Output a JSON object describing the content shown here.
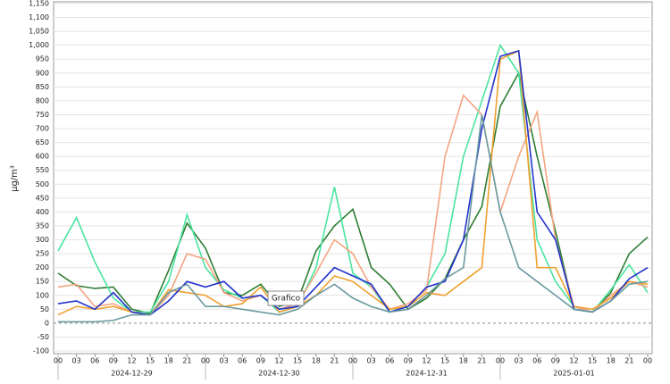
{
  "chart_data": {
    "type": "line",
    "ylabel": "µg/m³",
    "annotation": "Grafico",
    "categories": [
      "00",
      "03",
      "06",
      "09",
      "12",
      "15",
      "18",
      "21",
      "00",
      "03",
      "06",
      "09",
      "12",
      "15",
      "18",
      "21",
      "00",
      "03",
      "06",
      "09",
      "12",
      "15",
      "18",
      "21",
      "00",
      "03",
      "06",
      "09",
      "12",
      "15",
      "18",
      "21",
      "00"
    ],
    "date_labels": [
      "2024-12-29",
      "2024-12-30",
      "2024-12-31",
      "2025-01-01"
    ],
    "series": [
      {
        "color": "#2e7d32",
        "values": [
          180,
          135,
          125,
          130,
          50,
          35,
          190,
          360,
          270,
          110,
          100,
          140,
          60,
          80,
          260,
          350,
          410,
          200,
          140,
          50,
          90,
          160,
          300,
          420,
          780,
          900,
          600,
          330,
          50,
          40,
          110,
          250,
          310
        ]
      },
      {
        "color": "#4be3a0",
        "values": [
          260,
          380,
          220,
          90,
          40,
          40,
          150,
          390,
          200,
          120,
          90,
          100,
          40,
          60,
          200,
          490,
          180,
          130,
          40,
          60,
          130,
          250,
          600,
          800,
          1000,
          900,
          300,
          150,
          60,
          40,
          120,
          210,
          110
        ]
      },
      {
        "color": "#f4a582",
        "values": [
          130,
          140,
          60,
          70,
          40,
          30,
          100,
          250,
          230,
          110,
          80,
          100,
          50,
          70,
          180,
          300,
          250,
          130,
          50,
          70,
          120,
          600,
          820,
          750,
          400,
          600,
          760,
          300,
          60,
          40,
          100,
          150,
          130
        ]
      },
      {
        "color": "#f0a030",
        "values": [
          30,
          60,
          50,
          60,
          40,
          30,
          120,
          110,
          100,
          60,
          70,
          130,
          40,
          60,
          100,
          170,
          150,
          100,
          50,
          60,
          110,
          100,
          150,
          200,
          950,
          980,
          200,
          200,
          60,
          50,
          90,
          150,
          140
        ]
      },
      {
        "color": "#2233cc",
        "values": [
          70,
          80,
          50,
          110,
          40,
          30,
          80,
          150,
          130,
          150,
          90,
          100,
          50,
          60,
          130,
          200,
          170,
          140,
          40,
          60,
          130,
          150,
          300,
          700,
          960,
          980,
          400,
          300,
          50,
          40,
          80,
          160,
          200
        ]
      },
      {
        "color": "#6a9aa0",
        "values": [
          5,
          5,
          5,
          10,
          30,
          30,
          110,
          140,
          60,
          60,
          50,
          40,
          30,
          50,
          100,
          140,
          90,
          60,
          40,
          50,
          100,
          160,
          200,
          750,
          400,
          200,
          150,
          100,
          50,
          40,
          80,
          140,
          150
        ]
      }
    ],
    "ylim": [
      -100,
      1150
    ],
    "yticks": [
      -100,
      -50,
      0,
      50,
      100,
      150,
      200,
      250,
      300,
      350,
      400,
      450,
      500,
      550,
      600,
      650,
      700,
      750,
      800,
      850,
      900,
      950,
      {
        "value": 1000,
        "label": "1,000"
      },
      {
        "value": 1050,
        "label": "1,050"
      },
      {
        "value": 1100,
        "label": "1,100"
      },
      {
        "value": 1150,
        "label": "1,150"
      }
    ],
    "grid": true
  }
}
